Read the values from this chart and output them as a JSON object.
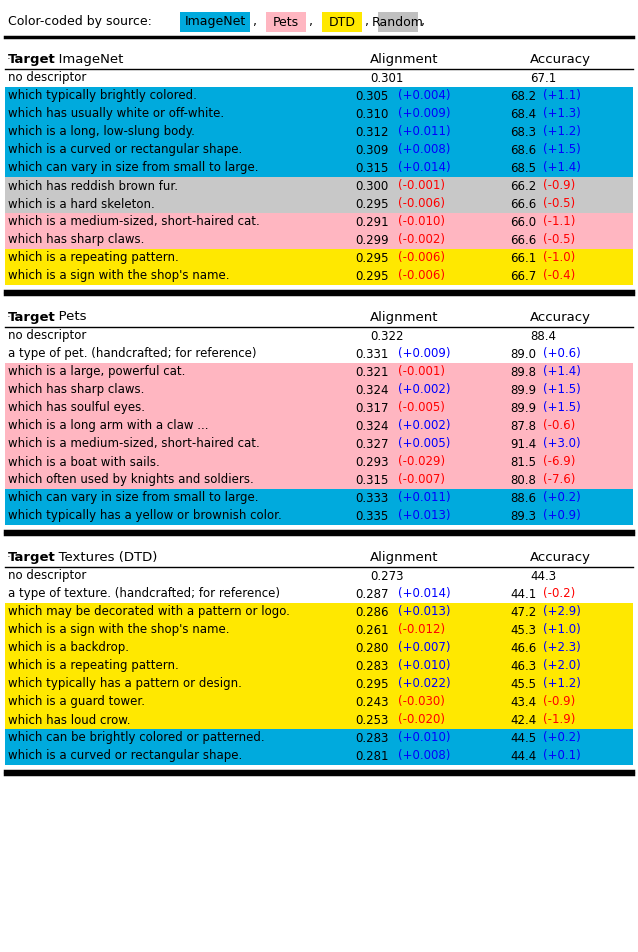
{
  "legend_label": "Color-coded by source:",
  "legend_items": [
    {
      "label": "ImageNet",
      "color": "#00AADD"
    },
    {
      "label": "Pets",
      "color": "#FFB6C1"
    },
    {
      "label": "DTD",
      "color": "#FFE800"
    },
    {
      "label": "Random",
      "color": "#C0C0C0"
    }
  ],
  "sections": [
    {
      "target": "ImageNet",
      "header_cols": [
        "",
        "Alignment",
        "Accuracy"
      ],
      "rows": [
        {
          "text": "no descriptor",
          "align": "0.301",
          "acc": "67.1",
          "bg": "#FFFFFF",
          "delta_align": "",
          "delta_acc": "",
          "delta_color": "black"
        },
        {
          "text": "which typically brightly colored.",
          "align": "0.305",
          "acc": "68.2",
          "bg": "#00AADD",
          "delta_align": "(+0.004)",
          "delta_acc": "(+1.1)",
          "delta_color": "blue"
        },
        {
          "text": "which has usually white or off-white.",
          "align": "0.310",
          "acc": "68.4",
          "bg": "#00AADD",
          "delta_align": "(+0.009)",
          "delta_acc": "(+1.3)",
          "delta_color": "blue"
        },
        {
          "text": "which is a long, low-slung body.",
          "align": "0.312",
          "acc": "68.3",
          "bg": "#00AADD",
          "delta_align": "(+0.011)",
          "delta_acc": "(+1.2)",
          "delta_color": "blue"
        },
        {
          "text": "which is a curved or rectangular shape.",
          "align": "0.309",
          "acc": "68.6",
          "bg": "#00AADD",
          "delta_align": "(+0.008)",
          "delta_acc": "(+1.5)",
          "delta_color": "blue"
        },
        {
          "text": "which can vary in size from small to large.",
          "align": "0.315",
          "acc": "68.5",
          "bg": "#00AADD",
          "delta_align": "(+0.014)",
          "delta_acc": "(+1.4)",
          "delta_color": "blue"
        },
        {
          "text": "which has reddish brown fur.",
          "align": "0.300",
          "acc": "66.2",
          "bg": "#C8C8C8",
          "delta_align": "(-0.001)",
          "delta_acc": "(-0.9)",
          "delta_color": "red"
        },
        {
          "text": "which is a hard skeleton.",
          "align": "0.295",
          "acc": "66.6",
          "bg": "#C8C8C8",
          "delta_align": "(-0.006)",
          "delta_acc": "(-0.5)",
          "delta_color": "red"
        },
        {
          "text": "which is a medium-sized, short-haired cat.",
          "align": "0.291",
          "acc": "66.0",
          "bg": "#FFB6C1",
          "delta_align": "(-0.010)",
          "delta_acc": "(-1.1)",
          "delta_color": "red"
        },
        {
          "text": "which has sharp claws.",
          "align": "0.299",
          "acc": "66.6",
          "bg": "#FFB6C1",
          "delta_align": "(-0.002)",
          "delta_acc": "(-0.5)",
          "delta_color": "red"
        },
        {
          "text": "which is a repeating pattern.",
          "align": "0.295",
          "acc": "66.1",
          "bg": "#FFE800",
          "delta_align": "(-0.006)",
          "delta_acc": "(-1.0)",
          "delta_color": "red"
        },
        {
          "text": "which is a sign with the shop's name.",
          "align": "0.295",
          "acc": "66.7",
          "bg": "#FFE800",
          "delta_align": "(-0.006)",
          "delta_acc": "(-0.4)",
          "delta_color": "red"
        }
      ]
    },
    {
      "target": "Pets",
      "header_cols": [
        "",
        "Alignment",
        "Accuracy"
      ],
      "rows": [
        {
          "text": "no descriptor",
          "align": "0.322",
          "acc": "88.4",
          "bg": "#FFFFFF",
          "delta_align": "",
          "delta_acc": "",
          "delta_color": "black"
        },
        {
          "text": "a type of pet. (handcrafted; for reference)",
          "align": "0.331",
          "acc": "89.0",
          "bg": "#FFFFFF",
          "delta_align": "(+0.009)",
          "delta_acc": "(+0.6)",
          "delta_color": "blue"
        },
        {
          "text": "which is a large, powerful cat.",
          "align": "0.321",
          "acc": "89.8",
          "bg": "#FFB6C1",
          "delta_align": "(-0.001)",
          "delta_acc": "(+1.4)",
          "delta_color_align": "red",
          "delta_color_acc": "blue"
        },
        {
          "text": "which has sharp claws.",
          "align": "0.324",
          "acc": "89.9",
          "bg": "#FFB6C1",
          "delta_align": "(+0.002)",
          "delta_acc": "(+1.5)",
          "delta_color": "blue"
        },
        {
          "text": "which has soulful eyes.",
          "align": "0.317",
          "acc": "89.9",
          "bg": "#FFB6C1",
          "delta_align": "(-0.005)",
          "delta_acc": "(+1.5)",
          "delta_color_align": "red",
          "delta_color_acc": "blue"
        },
        {
          "text": "which is a long arm with a claw ...",
          "align": "0.324",
          "acc": "87.8",
          "bg": "#FFB6C1",
          "delta_align": "(+0.002)",
          "delta_acc": "(-0.6)",
          "delta_color_align": "blue",
          "delta_color_acc": "red"
        },
        {
          "text": "which is a medium-sized, short-haired cat.",
          "align": "0.327",
          "acc": "91.4",
          "bg": "#FFB6C1",
          "delta_align": "(+0.005)",
          "delta_acc": "(+3.0)",
          "delta_color": "blue"
        },
        {
          "text": "which is a boat with sails.",
          "align": "0.293",
          "acc": "81.5",
          "bg": "#FFB6C1",
          "delta_align": "(-0.029)",
          "delta_acc": "(-6.9)",
          "delta_color": "red"
        },
        {
          "text": "which often used by knights and soldiers.",
          "align": "0.315",
          "acc": "80.8",
          "bg": "#FFB6C1",
          "delta_align": "(-0.007)",
          "delta_acc": "(-7.6)",
          "delta_color": "red"
        },
        {
          "text": "which can vary in size from small to large.",
          "align": "0.333",
          "acc": "88.6",
          "bg": "#00AADD",
          "delta_align": "(+0.011)",
          "delta_acc": "(+0.2)",
          "delta_color": "blue"
        },
        {
          "text": "which typically has a yellow or brownish color.",
          "align": "0.335",
          "acc": "89.3",
          "bg": "#00AADD",
          "delta_align": "(+0.013)",
          "delta_acc": "(+0.9)",
          "delta_color": "blue"
        }
      ]
    },
    {
      "target": "Textures (DTD)",
      "header_cols": [
        "",
        "Alignment",
        "Accuracy"
      ],
      "rows": [
        {
          "text": "no descriptor",
          "align": "0.273",
          "acc": "44.3",
          "bg": "#FFFFFF",
          "delta_align": "",
          "delta_acc": "",
          "delta_color": "black"
        },
        {
          "text": "a type of texture. (handcrafted; for reference)",
          "align": "0.287",
          "acc": "44.1",
          "bg": "#FFFFFF",
          "delta_align": "(+0.014)",
          "delta_acc": "(-0.2)",
          "delta_color_align": "blue",
          "delta_color_acc": "red"
        },
        {
          "text": "which may be decorated with a pattern or logo.",
          "align": "0.286",
          "acc": "47.2",
          "bg": "#FFE800",
          "delta_align": "(+0.013)",
          "delta_acc": "(+2.9)",
          "delta_color": "blue"
        },
        {
          "text": "which is a sign with the shop's name.",
          "align": "0.261",
          "acc": "45.3",
          "bg": "#FFE800",
          "delta_align": "(-0.012)",
          "delta_acc": "(+1.0)",
          "delta_color_align": "red",
          "delta_color_acc": "blue"
        },
        {
          "text": "which is a backdrop.",
          "align": "0.280",
          "acc": "46.6",
          "bg": "#FFE800",
          "delta_align": "(+0.007)",
          "delta_acc": "(+2.3)",
          "delta_color": "blue"
        },
        {
          "text": "which is a repeating pattern.",
          "align": "0.283",
          "acc": "46.3",
          "bg": "#FFE800",
          "delta_align": "(+0.010)",
          "delta_acc": "(+2.0)",
          "delta_color": "blue"
        },
        {
          "text": "which typically has a pattern or design.",
          "align": "0.295",
          "acc": "45.5",
          "bg": "#FFE800",
          "delta_align": "(+0.022)",
          "delta_acc": "(+1.2)",
          "delta_color": "blue"
        },
        {
          "text": "which is a guard tower.",
          "align": "0.243",
          "acc": "43.4",
          "bg": "#FFE800",
          "delta_align": "(-0.030)",
          "delta_acc": "(-0.9)",
          "delta_color": "red"
        },
        {
          "text": "which has loud crow.",
          "align": "0.253",
          "acc": "42.4",
          "bg": "#FFE800",
          "delta_align": "(-0.020)",
          "delta_acc": "(-1.9)",
          "delta_color": "red"
        },
        {
          "text": "which can be brightly colored or patterned.",
          "align": "0.283",
          "acc": "44.5",
          "bg": "#00AADD",
          "delta_align": "(+0.010)",
          "delta_acc": "(+0.2)",
          "delta_color": "blue"
        },
        {
          "text": "which is a curved or rectangular shape.",
          "align": "0.281",
          "acc": "44.4",
          "bg": "#00AADD",
          "delta_align": "(+0.008)",
          "delta_acc": "(+0.1)",
          "delta_color": "blue"
        }
      ]
    }
  ]
}
